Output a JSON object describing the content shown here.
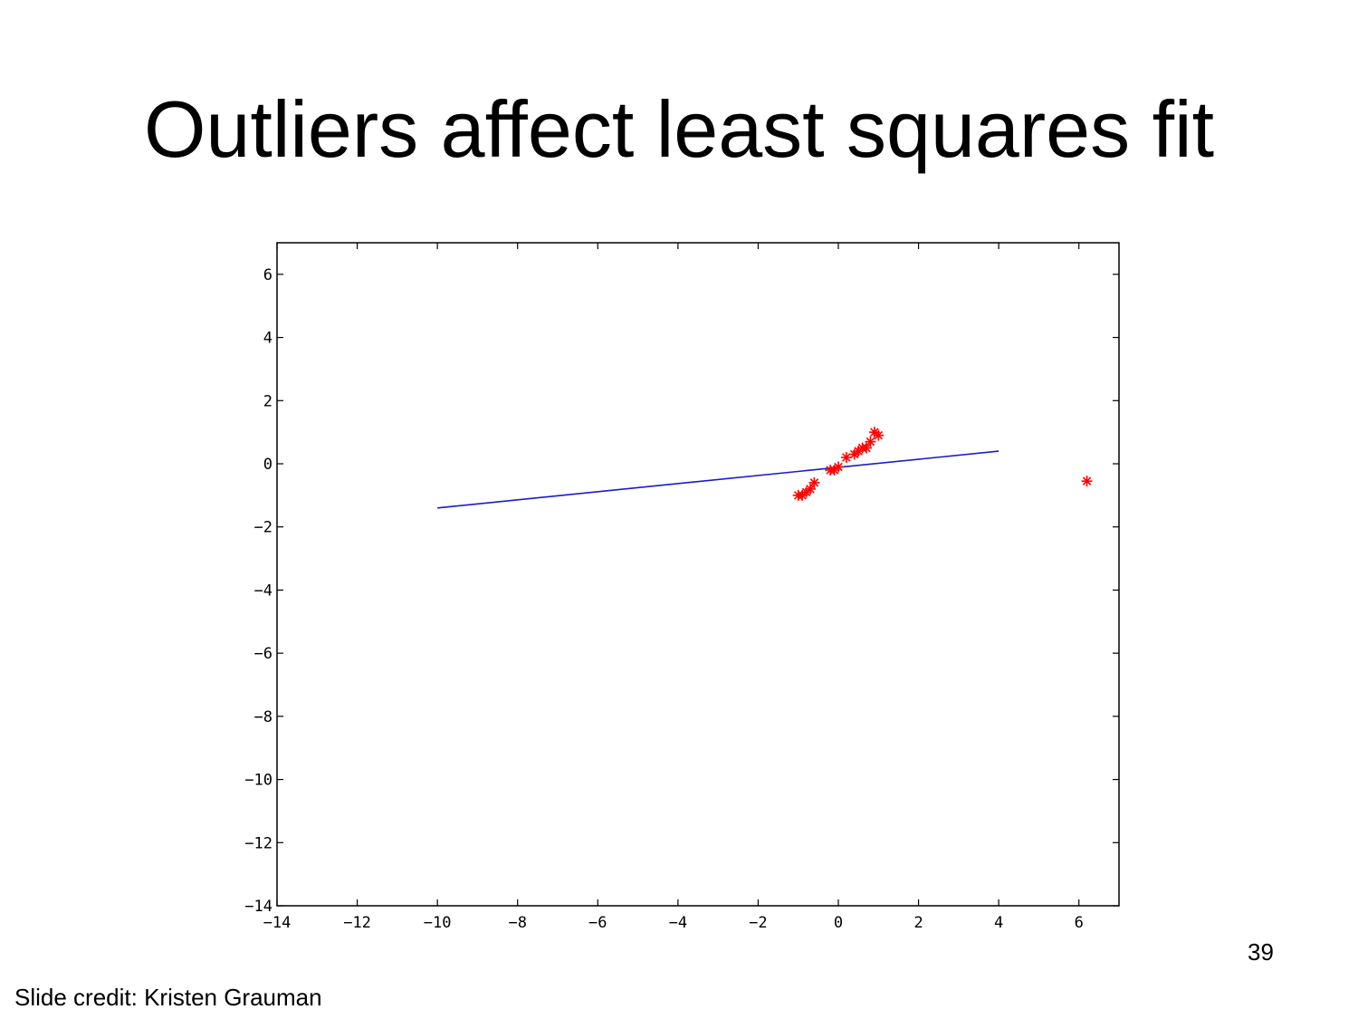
{
  "slide": {
    "title": "Outliers affect least squares fit",
    "page_number": "39",
    "credit": "Slide credit: Kristen Grauman"
  },
  "colors": {
    "points": "#ff0000",
    "fit_line": "#1a1acc",
    "axes": "#000000"
  },
  "chart_data": {
    "type": "scatter",
    "title": "",
    "xlabel": "",
    "ylabel": "",
    "xlim": [
      -14,
      7
    ],
    "ylim": [
      -14,
      7
    ],
    "xticks": [
      -14,
      -12,
      -10,
      -8,
      -6,
      -4,
      -2,
      0,
      2,
      4,
      6
    ],
    "yticks": [
      -14,
      -12,
      -10,
      -8,
      -6,
      -4,
      -2,
      0,
      2,
      4,
      6
    ],
    "grid": false,
    "series": [
      {
        "marker": "*",
        "points": [
          [
            -1.0,
            -1.0
          ],
          [
            -0.9,
            -1.0
          ],
          [
            -0.8,
            -0.9
          ],
          [
            -0.7,
            -0.8
          ],
          [
            -0.6,
            -0.6
          ],
          [
            -0.2,
            -0.2
          ],
          [
            -0.1,
            -0.2
          ],
          [
            0.0,
            -0.1
          ],
          [
            0.2,
            0.2
          ],
          [
            0.4,
            0.3
          ],
          [
            0.5,
            0.4
          ],
          [
            0.6,
            0.5
          ],
          [
            0.7,
            0.5
          ],
          [
            0.8,
            0.7
          ],
          [
            0.9,
            1.0
          ],
          [
            1.0,
            0.9
          ],
          [
            6.2,
            -0.55
          ]
        ]
      },
      {
        "style": "line",
        "points": [
          [
            -10,
            -1.4
          ],
          [
            4,
            0.4
          ]
        ]
      }
    ]
  }
}
